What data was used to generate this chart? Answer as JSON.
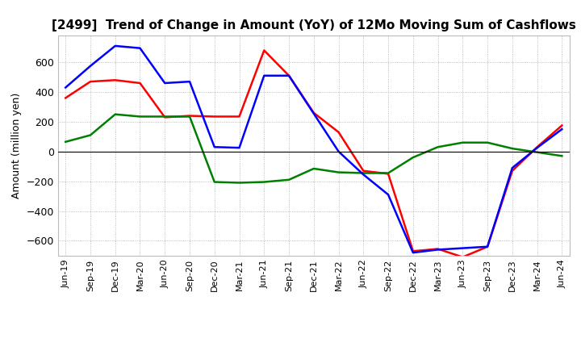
{
  "title": "[2499]  Trend of Change in Amount (YoY) of 12Mo Moving Sum of Cashflows",
  "ylabel": "Amount (million yen)",
  "ylim": [
    -700,
    780
  ],
  "yticks": [
    -600,
    -400,
    -200,
    0,
    200,
    400,
    600
  ],
  "x_labels": [
    "Jun-19",
    "Sep-19",
    "Dec-19",
    "Mar-20",
    "Jun-20",
    "Sep-20",
    "Dec-20",
    "Mar-21",
    "Jun-21",
    "Sep-21",
    "Dec-21",
    "Mar-22",
    "Jun-22",
    "Sep-22",
    "Dec-22",
    "Mar-23",
    "Jun-23",
    "Sep-23",
    "Dec-23",
    "Mar-24",
    "Jun-24"
  ],
  "operating": [
    360,
    470,
    480,
    460,
    230,
    240,
    235,
    235,
    680,
    510,
    260,
    130,
    -130,
    -150,
    -670,
    -655,
    -710,
    -640,
    -130,
    30,
    175
  ],
  "investing": [
    65,
    110,
    250,
    235,
    235,
    235,
    -205,
    -210,
    -205,
    -190,
    -115,
    -140,
    -145,
    -145,
    -40,
    30,
    60,
    60,
    20,
    -5,
    -30
  ],
  "free": [
    430,
    575,
    710,
    695,
    460,
    470,
    30,
    25,
    510,
    510,
    255,
    0,
    -155,
    -290,
    -680,
    -660,
    -650,
    -640,
    -110,
    25,
    150
  ],
  "op_color": "#ff0000",
  "inv_color": "#008000",
  "free_color": "#0000ff",
  "bg_color": "#ffffff",
  "grid_color": "#aaaaaa"
}
